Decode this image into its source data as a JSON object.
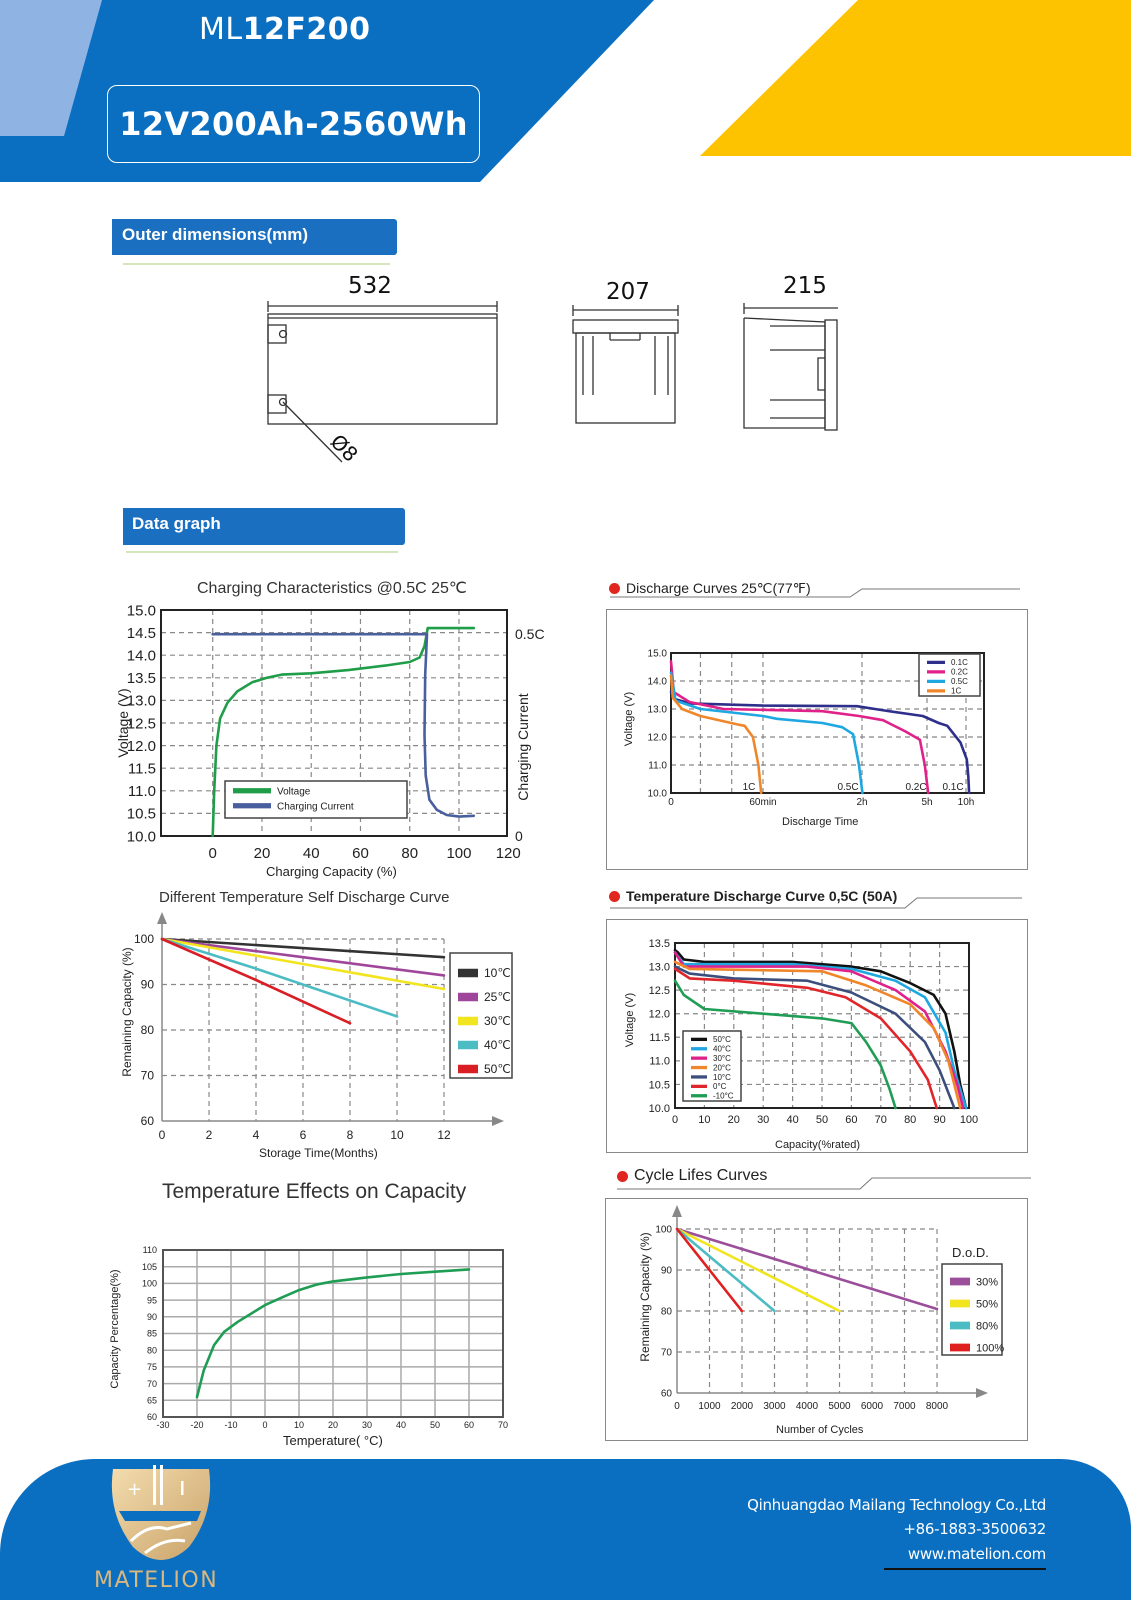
{
  "header": {
    "model_prefix": "ML",
    "model_bold": "12F200",
    "spec": "12V200Ah-2560Wh",
    "colors": {
      "blue": "#0b6fc1",
      "light_blue": "#8fb4e3",
      "yellow": "#fdc200"
    }
  },
  "sections": {
    "outer_dimensions": "Outer dimensions(mm)",
    "data_graph": "Data graph"
  },
  "dimensions": {
    "length": "532",
    "width": "207",
    "height": "215",
    "terminal": "Ø8"
  },
  "chart_data": [
    {
      "id": "charging",
      "type": "line",
      "title": "Charging Characteristics @0.5C 25℃",
      "xlabel": "Charging Capacity (%)",
      "ylabel": "Voltage (V)",
      "y2label": "Charging Current",
      "xlim": [
        -21,
        119.5
      ],
      "ylim": [
        10,
        15
      ],
      "y2lim": [
        0,
        0.56
      ],
      "xticks": [
        "0",
        "20",
        "40",
        "60",
        "80",
        "100",
        "120"
      ],
      "yticks": [
        "10.0",
        "10.5",
        "11.0",
        "11.5",
        "12.0",
        "12.5",
        "13.0",
        "13.5",
        "14.0",
        "14.5",
        "15.0"
      ],
      "y2ticks": [
        {
          "v": 0.5,
          "label": "0.5C"
        },
        {
          "v": 0,
          "label": "0"
        }
      ],
      "grid": true,
      "legend": "bottom-left",
      "series": [
        {
          "name": "Voltage",
          "color": "#1f9d48",
          "axis": "left",
          "points": [
            [
              0,
              10
            ],
            [
              0.6,
              11
            ],
            [
              1.5,
              12
            ],
            [
              3,
              12.6
            ],
            [
              6,
              12.95
            ],
            [
              10,
              13.2
            ],
            [
              16,
              13.4
            ],
            [
              22,
              13.5
            ],
            [
              28,
              13.57
            ],
            [
              40,
              13.6
            ],
            [
              55,
              13.67
            ],
            [
              70,
              13.77
            ],
            [
              80,
              13.85
            ],
            [
              84,
              13.95
            ],
            [
              86,
              14.2
            ],
            [
              87.3,
              14.6
            ],
            [
              106,
              14.6
            ]
          ]
        },
        {
          "name": "Charging Current",
          "color": "#4a5f9e",
          "axis": "right",
          "points": [
            [
              0,
              0.5
            ],
            [
              87,
              0.5
            ],
            [
              86.3,
              0.4
            ],
            [
              86,
              0.25
            ],
            [
              86.5,
              0.15
            ],
            [
              88,
              0.09
            ],
            [
              91,
              0.065
            ],
            [
              95,
              0.052
            ],
            [
              100,
              0.048
            ],
            [
              106,
              0.05
            ]
          ]
        }
      ]
    },
    {
      "id": "self_discharge",
      "type": "line",
      "title": "Different Temperature Self Discharge Curve",
      "xlabel": "Storage Time(Months)",
      "ylabel": "Remaining Capacity (%)",
      "xlim": [
        0,
        12
      ],
      "ylim": [
        60,
        100
      ],
      "xticks": [
        "0",
        "2",
        "4",
        "6",
        "8",
        "10",
        "12"
      ],
      "yticks": [
        "60",
        "70",
        "80",
        "90",
        "100"
      ],
      "grid": true,
      "legend": "right",
      "series": [
        {
          "name": "10℃",
          "color": "#333333",
          "points": [
            [
              0,
              100
            ],
            [
              12,
              96
            ]
          ]
        },
        {
          "name": "25℃",
          "color": "#a0469a",
          "points": [
            [
              0,
              100
            ],
            [
              6,
              96
            ],
            [
              12,
              92
            ]
          ]
        },
        {
          "name": "30℃",
          "color": "#f2e51f",
          "points": [
            [
              0,
              100
            ],
            [
              6,
              94.5
            ],
            [
              12,
              89
            ]
          ]
        },
        {
          "name": "40℃",
          "color": "#4bbcc4",
          "points": [
            [
              0,
              100
            ],
            [
              4,
              93.5
            ],
            [
              10,
              83
            ]
          ]
        },
        {
          "name": "50℃",
          "color": "#d91e25",
          "points": [
            [
              0,
              100
            ],
            [
              4,
              91
            ],
            [
              8,
              81.5
            ]
          ]
        }
      ]
    },
    {
      "id": "temp_effects",
      "type": "line",
      "title": "Temperature Effects on Capacity",
      "xlabel": "Temperature( °C)",
      "ylabel": "Capacity Percentage(%)",
      "xlim": [
        -30,
        70
      ],
      "ylim": [
        60,
        110
      ],
      "xticks": [
        "-30",
        "-20",
        "-10",
        "0",
        "10",
        "20",
        "30",
        "40",
        "50",
        "60",
        "70"
      ],
      "yticks": [
        "60",
        "65",
        "70",
        "75",
        "80",
        "85",
        "90",
        "95",
        "100",
        "105",
        "110"
      ],
      "grid": true,
      "series": [
        {
          "color": "#1f9d55",
          "points": [
            [
              -20,
              66
            ],
            [
              -18,
              74
            ],
            [
              -15,
              81.5
            ],
            [
              -12,
              85.5
            ],
            [
              -8,
              88.5
            ],
            [
              -4,
              91
            ],
            [
              0,
              93.5
            ],
            [
              5,
              95.8
            ],
            [
              10,
              98
            ],
            [
              15,
              99.6
            ],
            [
              20,
              100.6
            ],
            [
              30,
              101.8
            ],
            [
              40,
              102.8
            ],
            [
              50,
              103.5
            ],
            [
              60,
              104.2
            ]
          ]
        }
      ]
    },
    {
      "id": "discharge",
      "type": "line",
      "title": "Discharge Curves 25℃(77℉)",
      "xlabel": "Discharge Time",
      "ylabel": "Voltage (V)",
      "ylim": [
        10,
        15
      ],
      "xticks": [
        "0",
        "60min",
        "2h",
        "5h",
        "10h"
      ],
      "xtick_values": [
        0,
        1,
        2,
        5,
        10
      ],
      "yticks": [
        "10.0",
        "11.0",
        "12.0",
        "13.0",
        "14.0",
        "15.0"
      ],
      "grid": true,
      "legend": "top-right",
      "series": [
        {
          "name": "0.1C",
          "end_label": "0.1C",
          "color": "#2e2f8a",
          "points": [
            [
              0,
              13.6
            ],
            [
              0.05,
              13.35
            ],
            [
              0.2,
              13.2
            ],
            [
              1,
              13.12
            ],
            [
              1.95,
              13.1
            ],
            [
              3,
              12.95
            ],
            [
              4.8,
              12.75
            ],
            [
              6.5,
              12.5
            ],
            [
              7.6,
              12.4
            ],
            [
              9.3,
              11.8
            ],
            [
              10.1,
              11.2
            ],
            [
              10.3,
              10.6
            ],
            [
              10.4,
              10
            ]
          ]
        },
        {
          "name": "0.2C",
          "end_label": "0.2C",
          "color": "#e0218a",
          "points": [
            [
              0,
              14.7
            ],
            [
              0.03,
              13.6
            ],
            [
              0.2,
              13.25
            ],
            [
              0.57,
              13.0
            ],
            [
              1.6,
              12.92
            ],
            [
              1.97,
              12.75
            ],
            [
              2.97,
              12.6
            ],
            [
              4.0,
              12.2
            ],
            [
              4.67,
              11.9
            ],
            [
              4.9,
              11.0
            ],
            [
              5.15,
              10
            ]
          ]
        },
        {
          "name": "0.5C",
          "end_label": "0.5C",
          "color": "#1ea7e1",
          "points": [
            [
              0,
              14.3
            ],
            [
              0.05,
              13.3
            ],
            [
              0.32,
              13.0
            ],
            [
              1,
              12.75
            ],
            [
              1.14,
              12.65
            ],
            [
              1.6,
              12.5
            ],
            [
              1.8,
              12.35
            ],
            [
              1.91,
              12.1
            ],
            [
              1.97,
              11.0
            ],
            [
              2.02,
              10
            ]
          ]
        },
        {
          "name": "1C",
          "end_label": "1C",
          "color": "#f0862a",
          "points": [
            [
              0,
              14.2
            ],
            [
              0.02,
              13.4
            ],
            [
              0.12,
              13.0
            ],
            [
              0.32,
              12.75
            ],
            [
              0.72,
              12.45
            ],
            [
              0.8,
              12.4
            ],
            [
              0.89,
              12.0
            ],
            [
              0.95,
              11.0
            ],
            [
              0.98,
              10
            ]
          ]
        }
      ]
    },
    {
      "id": "temp_discharge",
      "type": "line",
      "title": "Temperature Discharge Curve 0,5C (50A)",
      "xlabel": "Capacity(%rated)",
      "ylabel": "Voltage (V)",
      "xlim": [
        0,
        100
      ],
      "ylim": [
        10,
        13.5
      ],
      "xticks": [
        "0",
        "10",
        "20",
        "30",
        "40",
        "50",
        "60",
        "70",
        "80",
        "90",
        "100"
      ],
      "yticks": [
        "10.0",
        "10.5",
        "11.0",
        "11.5",
        "12.0",
        "12.5",
        "13.0",
        "13.5"
      ],
      "grid": true,
      "legend": "bottom-left",
      "series": [
        {
          "name": "50°C",
          "color": "#111111",
          "points": [
            [
              0,
              13.35
            ],
            [
              1,
              13.3
            ],
            [
              3,
              13.15
            ],
            [
              10,
              13.1
            ],
            [
              40,
              13.1
            ],
            [
              60,
              13.0
            ],
            [
              70,
              12.9
            ],
            [
              80,
              12.65
            ],
            [
              88,
              12.4
            ],
            [
              92,
              12.0
            ],
            [
              95,
              11.2
            ],
            [
              97,
              10.5
            ],
            [
              99,
              10
            ]
          ]
        },
        {
          "name": "40°C",
          "color": "#1ea7e1",
          "points": [
            [
              0,
              13.3
            ],
            [
              3,
              13.05
            ],
            [
              10,
              13.05
            ],
            [
              40,
              13.05
            ],
            [
              60,
              12.95
            ],
            [
              75,
              12.7
            ],
            [
              85,
              12.35
            ],
            [
              92,
              11.6
            ],
            [
              95,
              10.8
            ],
            [
              99,
              10
            ]
          ]
        },
        {
          "name": "30°C",
          "color": "#e0218a",
          "points": [
            [
              0,
              13.3
            ],
            [
              3,
              13.0
            ],
            [
              10,
              13.0
            ],
            [
              45,
              13.0
            ],
            [
              60,
              12.9
            ],
            [
              75,
              12.5
            ],
            [
              85,
              12.05
            ],
            [
              92,
              11.2
            ],
            [
              96,
              10.5
            ],
            [
              98,
              10
            ]
          ]
        },
        {
          "name": "20°C",
          "color": "#f0862a",
          "points": [
            [
              0,
              13.1
            ],
            [
              5,
              12.95
            ],
            [
              50,
              12.9
            ],
            [
              65,
              12.6
            ],
            [
              80,
              12.2
            ],
            [
              88,
              11.7
            ],
            [
              93,
              11.0
            ],
            [
              97,
              10
            ]
          ]
        },
        {
          "name": "10°C",
          "color": "#3c4f7c",
          "points": [
            [
              0,
              13.0
            ],
            [
              5,
              12.85
            ],
            [
              20,
              12.75
            ],
            [
              45,
              12.7
            ],
            [
              60,
              12.45
            ],
            [
              75,
              12.0
            ],
            [
              85,
              11.4
            ],
            [
              90,
              10.8
            ],
            [
              95,
              10
            ]
          ]
        },
        {
          "name": "0°C",
          "color": "#e0262b",
          "points": [
            [
              0,
              12.95
            ],
            [
              5,
              12.75
            ],
            [
              20,
              12.7
            ],
            [
              45,
              12.55
            ],
            [
              58,
              12.35
            ],
            [
              70,
              11.9
            ],
            [
              80,
              11.2
            ],
            [
              86,
              10.6
            ],
            [
              89,
              10
            ]
          ]
        },
        {
          "name": "-10°C",
          "color": "#1f9d55",
          "points": [
            [
              0,
              12.7
            ],
            [
              3,
              12.4
            ],
            [
              10,
              12.1
            ],
            [
              30,
              12.0
            ],
            [
              50,
              11.9
            ],
            [
              60,
              11.8
            ],
            [
              65,
              11.4
            ],
            [
              70,
              10.9
            ],
            [
              73,
              10.4
            ],
            [
              75,
              10
            ]
          ]
        }
      ]
    },
    {
      "id": "cycle",
      "type": "line",
      "title": "Cycle Lifes Curves",
      "xlabel": "Number of Cycles",
      "ylabel": "Remaining Capacity (%)",
      "legend_title": "D.o.D.",
      "xlim": [
        0,
        8000
      ],
      "ylim": [
        60,
        100
      ],
      "xticks": [
        "0",
        "1000",
        "2000",
        "3000",
        "4000",
        "5000",
        "6000",
        "7000",
        "8000"
      ],
      "yticks": [
        "60",
        "70",
        "80",
        "90",
        "100"
      ],
      "grid": true,
      "legend": "right",
      "series": [
        {
          "name": "30%",
          "color": "#9b4f9b",
          "points": [
            [
              0,
              100
            ],
            [
              8000,
              80.5
            ]
          ]
        },
        {
          "name": "50%",
          "color": "#f2e51f",
          "points": [
            [
              0,
              100
            ],
            [
              5000,
              80
            ]
          ]
        },
        {
          "name": "80%",
          "color": "#4bbcc4",
          "points": [
            [
              0,
              100
            ],
            [
              3000,
              80
            ]
          ]
        },
        {
          "name": "100%",
          "color": "#e02020",
          "points": [
            [
              0,
              100
            ],
            [
              2000,
              80
            ]
          ]
        }
      ]
    }
  ],
  "footer": {
    "brand": "MATELION",
    "company": "Qinhuangdao Mailang Technology Co.,Ltd",
    "phone": "+86-1883-3500632",
    "website": "www.matelion.com",
    "colors": {
      "background": "#0a6fc0",
      "gold": "#d9b77e"
    }
  }
}
